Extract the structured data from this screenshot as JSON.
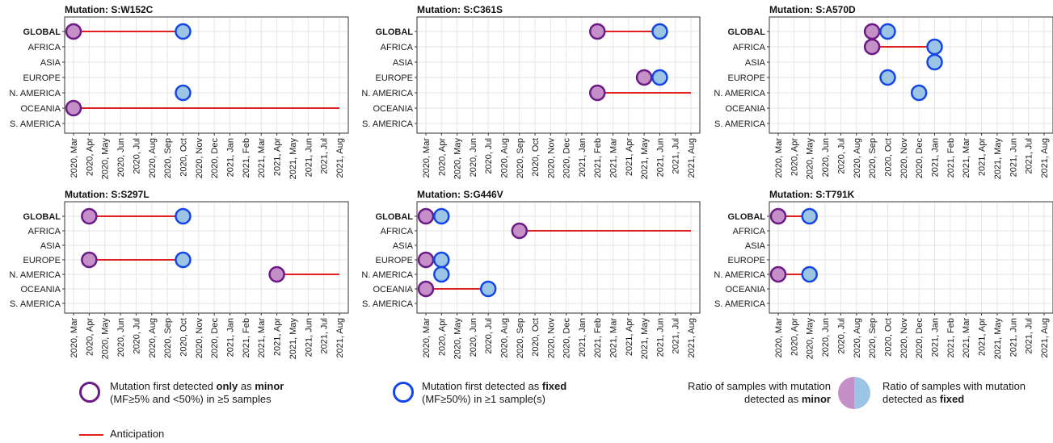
{
  "chart_data": [
    {
      "type": "scatter",
      "title": "Mutation: S:W152C",
      "categories": [
        "GLOBAL",
        "AFRICA",
        "ASIA",
        "EUROPE",
        "N. AMERICA",
        "OCEANIA",
        "S. AMERICA"
      ],
      "x_ticks": [
        "2020, Mar",
        "2020, Apr",
        "2020, May",
        "2020, Jun",
        "2020, Jul",
        "2020, Aug",
        "2020, Sep",
        "2020, Oct",
        "2020, Nov",
        "2020, Dec",
        "2021, Jan",
        "2021, Feb",
        "2021, Mar",
        "2021, Apr",
        "2021, May",
        "2021, Jun",
        "2021, Jul",
        "2021, Aug"
      ],
      "minor_points": [
        {
          "region": "GLOBAL",
          "month": "2020, Mar"
        },
        {
          "region": "OCEANIA",
          "month": "2020, Mar"
        }
      ],
      "fixed_points": [
        {
          "region": "GLOBAL",
          "month": "2020, Oct"
        },
        {
          "region": "N. AMERICA",
          "month": "2020, Oct"
        }
      ],
      "anticipation": [
        {
          "region": "GLOBAL",
          "from": "2020, Mar",
          "to": "2020, Oct"
        },
        {
          "region": "OCEANIA",
          "from": "2020, Mar",
          "to": "2021, Aug"
        }
      ],
      "grid": true
    },
    {
      "type": "scatter",
      "title": "Mutation: S:C361S",
      "categories": [
        "GLOBAL",
        "AFRICA",
        "ASIA",
        "EUROPE",
        "N. AMERICA",
        "OCEANIA",
        "S. AMERICA"
      ],
      "x_ticks": [
        "2020, Mar",
        "2020, Apr",
        "2020, May",
        "2020, Jun",
        "2020, Jul",
        "2020, Aug",
        "2020, Sep",
        "2020, Oct",
        "2020, Nov",
        "2020, Dec",
        "2021, Jan",
        "2021, Feb",
        "2021, Mar",
        "2021, Apr",
        "2021, May",
        "2021, Jun",
        "2021, Jul",
        "2021, Aug"
      ],
      "minor_points": [
        {
          "region": "GLOBAL",
          "month": "2021, Feb"
        },
        {
          "region": "EUROPE",
          "month": "2021, May"
        },
        {
          "region": "N. AMERICA",
          "month": "2021, Feb"
        }
      ],
      "fixed_points": [
        {
          "region": "GLOBAL",
          "month": "2021, Jun"
        },
        {
          "region": "EUROPE",
          "month": "2021, Jun"
        }
      ],
      "anticipation": [
        {
          "region": "GLOBAL",
          "from": "2021, Feb",
          "to": "2021, Jun"
        },
        {
          "region": "N. AMERICA",
          "from": "2021, Feb",
          "to": "2021, Aug"
        }
      ],
      "grid": true
    },
    {
      "type": "scatter",
      "title": "Mutation: S:A570D",
      "categories": [
        "GLOBAL",
        "AFRICA",
        "ASIA",
        "EUROPE",
        "N. AMERICA",
        "OCEANIA",
        "S. AMERICA"
      ],
      "x_ticks": [
        "2020, Mar",
        "2020, Apr",
        "2020, May",
        "2020, Jun",
        "2020, Jul",
        "2020, Aug",
        "2020, Sep",
        "2020, Oct",
        "2020, Nov",
        "2020, Dec",
        "2021, Jan",
        "2021, Feb",
        "2021, Mar",
        "2021, Apr",
        "2021, May",
        "2021, Jun",
        "2021, Jul",
        "2021, Aug"
      ],
      "minor_points": [
        {
          "region": "GLOBAL",
          "month": "2020, Sep"
        },
        {
          "region": "AFRICA",
          "month": "2020, Sep"
        }
      ],
      "fixed_points": [
        {
          "region": "GLOBAL",
          "month": "2020, Oct"
        },
        {
          "region": "AFRICA",
          "month": "2021, Jan"
        },
        {
          "region": "ASIA",
          "month": "2021, Jan"
        },
        {
          "region": "EUROPE",
          "month": "2020, Oct"
        },
        {
          "region": "N. AMERICA",
          "month": "2020, Dec"
        }
      ],
      "anticipation": [
        {
          "region": "AFRICA",
          "from": "2020, Sep",
          "to": "2021, Jan"
        }
      ],
      "grid": true
    },
    {
      "type": "scatter",
      "title": "Mutation: S:S297L",
      "categories": [
        "GLOBAL",
        "AFRICA",
        "ASIA",
        "EUROPE",
        "N. AMERICA",
        "OCEANIA",
        "S. AMERICA"
      ],
      "x_ticks": [
        "2020, Mar",
        "2020, Apr",
        "2020, May",
        "2020, Jun",
        "2020, Jul",
        "2020, Aug",
        "2020, Sep",
        "2020, Oct",
        "2020, Nov",
        "2020, Dec",
        "2021, Jan",
        "2021, Feb",
        "2021, Mar",
        "2021, Apr",
        "2021, May",
        "2021, Jun",
        "2021, Jul",
        "2021, Aug"
      ],
      "minor_points": [
        {
          "region": "GLOBAL",
          "month": "2020, Apr"
        },
        {
          "region": "EUROPE",
          "month": "2020, Apr"
        },
        {
          "region": "N. AMERICA",
          "month": "2021, Apr"
        }
      ],
      "fixed_points": [
        {
          "region": "GLOBAL",
          "month": "2020, Oct"
        },
        {
          "region": "EUROPE",
          "month": "2020, Oct"
        }
      ],
      "anticipation": [
        {
          "region": "GLOBAL",
          "from": "2020, Apr",
          "to": "2020, Oct"
        },
        {
          "region": "EUROPE",
          "from": "2020, Apr",
          "to": "2020, Oct"
        },
        {
          "region": "N. AMERICA",
          "from": "2021, Apr",
          "to": "2021, Aug"
        }
      ],
      "grid": true
    },
    {
      "type": "scatter",
      "title": "Mutation: S:G446V",
      "categories": [
        "GLOBAL",
        "AFRICA",
        "ASIA",
        "EUROPE",
        "N. AMERICA",
        "OCEANIA",
        "S. AMERICA"
      ],
      "x_ticks": [
        "2020, Mar",
        "2020, Apr",
        "2020, May",
        "2020, Jun",
        "2020, Jul",
        "2020, Aug",
        "2020, Sep",
        "2020, Oct",
        "2020, Nov",
        "2020, Dec",
        "2021, Jan",
        "2021, Feb",
        "2021, Mar",
        "2021, Apr",
        "2021, May",
        "2021, Jun",
        "2021, Jul",
        "2021, Aug"
      ],
      "minor_points": [
        {
          "region": "GLOBAL",
          "month": "2020, Mar"
        },
        {
          "region": "AFRICA",
          "month": "2020, Sep"
        },
        {
          "region": "EUROPE",
          "month": "2020, Mar"
        },
        {
          "region": "OCEANIA",
          "month": "2020, Mar"
        }
      ],
      "fixed_points": [
        {
          "region": "GLOBAL",
          "month": "2020, Apr"
        },
        {
          "region": "EUROPE",
          "month": "2020, Apr"
        },
        {
          "region": "N. AMERICA",
          "month": "2020, Apr"
        },
        {
          "region": "OCEANIA",
          "month": "2020, Jul"
        }
      ],
      "anticipation": [
        {
          "region": "AFRICA",
          "from": "2020, Sep",
          "to": "2021, Aug"
        },
        {
          "region": "OCEANIA",
          "from": "2020, Mar",
          "to": "2020, Jul"
        }
      ],
      "grid": true
    },
    {
      "type": "scatter",
      "title": "Mutation: S:T791K",
      "categories": [
        "GLOBAL",
        "AFRICA",
        "ASIA",
        "EUROPE",
        "N. AMERICA",
        "OCEANIA",
        "S. AMERICA"
      ],
      "x_ticks": [
        "2020, Mar",
        "2020, Apr",
        "2020, May",
        "2020, Jun",
        "2020, Jul",
        "2020, Aug",
        "2020, Sep",
        "2020, Oct",
        "2020, Nov",
        "2020, Dec",
        "2021, Jan",
        "2021, Feb",
        "2021, Mar",
        "2021, Apr",
        "2021, May",
        "2021, Jun",
        "2021, Jul",
        "2021, Aug"
      ],
      "minor_points": [
        {
          "region": "GLOBAL",
          "month": "2020, Mar"
        },
        {
          "region": "N. AMERICA",
          "month": "2020, Mar"
        }
      ],
      "fixed_points": [
        {
          "region": "GLOBAL",
          "month": "2020, May"
        },
        {
          "region": "N. AMERICA",
          "month": "2020, May"
        }
      ],
      "anticipation": [
        {
          "region": "GLOBAL",
          "from": "2020, Mar",
          "to": "2020, May"
        },
        {
          "region": "N. AMERICA",
          "from": "2020, Mar",
          "to": "2020, May"
        }
      ],
      "grid": true
    }
  ],
  "colors": {
    "minor_border": "#6b1a86",
    "fixed_border": "#1446e6",
    "minor_fill": "#c58fc8",
    "fixed_fill": "#9cc4e4",
    "anticipation_line": "#e02020"
  },
  "legend": {
    "minor": {
      "line1_a": "Mutation first detected ",
      "line1_b": "only",
      "line1_c": " as ",
      "line1_d": "minor",
      "line2": "(MF≥5% and <50%) in ≥5 samples"
    },
    "fixed": {
      "line1_a": "Mutation first detected as ",
      "line1_b": "fixed",
      "line2": "(MF≥50%) in ≥1 sample(s)"
    },
    "ratio_minor": {
      "line1": "Ratio of samples with mutation",
      "line2_a": "detected as ",
      "line2_b": "minor"
    },
    "ratio_fixed": {
      "line1": "Ratio of samples with mutation",
      "line2_a": "detected as ",
      "line2_b": "fixed"
    },
    "anticipation": "Anticipation"
  }
}
